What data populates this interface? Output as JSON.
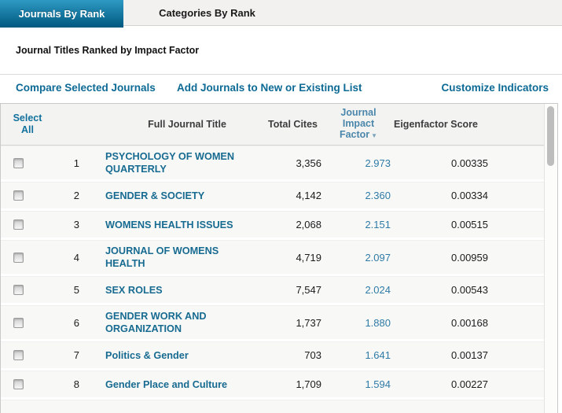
{
  "tabs": [
    {
      "label": "Journals By Rank",
      "active": true
    },
    {
      "label": "Categories By Rank",
      "active": false
    }
  ],
  "heading": "Journal Titles Ranked by Impact Factor",
  "actions": {
    "compare": "Compare Selected Journals",
    "add": "Add Journals to New or Existing List",
    "customize": "Customize Indicators"
  },
  "table": {
    "headers": {
      "select": "Select All",
      "title": "Full Journal Title",
      "cites": "Total Cites",
      "jif": "Journal Impact Factor",
      "jif_sort_icon": "▼",
      "eigenfactor": "Eigenfactor Score"
    },
    "sorted_by": "Journal Impact Factor",
    "rows": [
      {
        "rank": "1",
        "title": "PSYCHOLOGY OF WOMEN QUARTERLY",
        "total_cites": "3,356",
        "impact_factor": "2.973",
        "eigenfactor": "0.00335"
      },
      {
        "rank": "2",
        "title": "GENDER & SOCIETY",
        "total_cites": "4,142",
        "impact_factor": "2.360",
        "eigenfactor": "0.00334"
      },
      {
        "rank": "3",
        "title": "WOMENS HEALTH ISSUES",
        "total_cites": "2,068",
        "impact_factor": "2.151",
        "eigenfactor": "0.00515"
      },
      {
        "rank": "4",
        "title": "JOURNAL OF WOMENS HEALTH",
        "total_cites": "4,719",
        "impact_factor": "2.097",
        "eigenfactor": "0.00959"
      },
      {
        "rank": "5",
        "title": "SEX ROLES",
        "total_cites": "7,547",
        "impact_factor": "2.024",
        "eigenfactor": "0.00543"
      },
      {
        "rank": "6",
        "title": "GENDER WORK AND ORGANIZATION",
        "total_cites": "1,737",
        "impact_factor": "1.880",
        "eigenfactor": "0.00168"
      },
      {
        "rank": "7",
        "title": "Politics & Gender",
        "total_cites": "703",
        "impact_factor": "1.641",
        "eigenfactor": "0.00137"
      },
      {
        "rank": "8",
        "title": "Gender Place and Culture",
        "total_cites": "1,709",
        "impact_factor": "1.594",
        "eigenfactor": "0.00227"
      }
    ]
  },
  "colors": {
    "tab_active_top": "#2e9ac4",
    "tab_active_bottom": "#00587e",
    "action_link": "#0d6a94",
    "journal_link": "#176b91",
    "impact_factor_link": "#2f7ba6",
    "header_bg": "#f3f3f2",
    "row_bg": "#f8f8f7"
  }
}
